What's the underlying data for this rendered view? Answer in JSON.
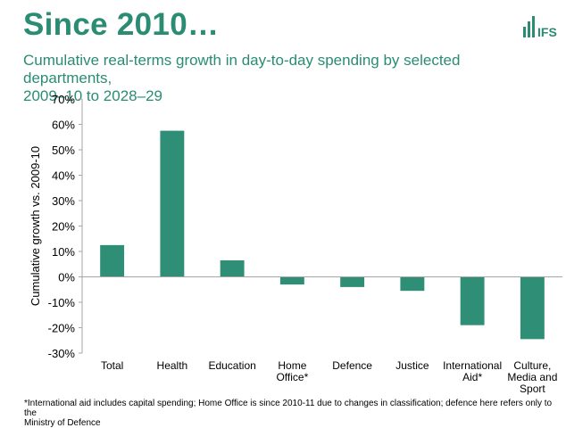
{
  "header": {
    "title": "Since 2010…",
    "logo_text": "IFS",
    "subtitle_line1": "Cumulative real-terms growth in day-to-day spending by selected departments,",
    "subtitle_line2": "2009–10 to 2028–29"
  },
  "colors": {
    "accent": "#2a8c73",
    "bar": "#2e8f76",
    "axis": "#a6a6a6"
  },
  "chart_data": {
    "type": "bar",
    "title": "Cumulative real-terms growth in day-to-day spending by selected departments, 2009–10 to 2028–29",
    "xlabel": "",
    "ylabel": "Cumulative growth vs. 2009-10",
    "ylim": [
      -30,
      70
    ],
    "yticks": [
      -30,
      -20,
      -10,
      0,
      10,
      20,
      30,
      40,
      50,
      60,
      70
    ],
    "ytick_labels": [
      "-30%",
      "-20%",
      "-10%",
      "0%",
      "10%",
      "20%",
      "30%",
      "40%",
      "50%",
      "60%",
      "70%"
    ],
    "categories": [
      [
        "Total"
      ],
      [
        "Health"
      ],
      [
        "Education"
      ],
      [
        "Home",
        "Office*"
      ],
      [
        "Defence"
      ],
      [
        "Justice"
      ],
      [
        "International",
        "Aid*"
      ],
      [
        "Culture,",
        "Media and",
        "Sport"
      ]
    ],
    "values": [
      12.5,
      57.5,
      6.5,
      -3,
      -4,
      -5.5,
      -19,
      -24.5
    ],
    "grid": false,
    "legend": "none"
  },
  "footnote": {
    "line1": "*International aid includes capital spending; Home Office is since 2010-11 due to changes in classification; defence here refers only to the",
    "line2": "Ministry of Defence"
  }
}
